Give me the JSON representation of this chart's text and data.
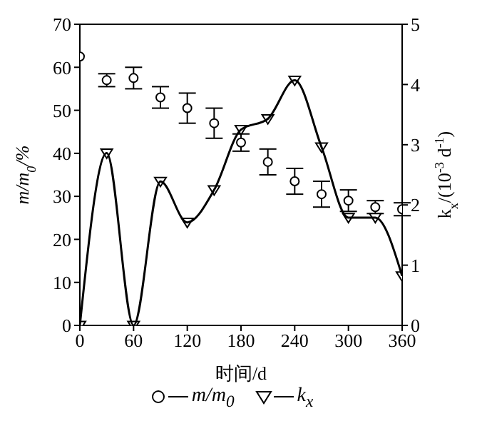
{
  "chart_data": {
    "type": "scatter",
    "xlabel": "时间/d",
    "ylabel": "m/m$_{0}$/%",
    "y2label": "k$_{x}$/(10$^{-3}$ d$^{-1}$)",
    "x": [
      0,
      30,
      60,
      90,
      120,
      150,
      180,
      210,
      240,
      270,
      300,
      330,
      360
    ],
    "series": [
      {
        "name": "m/m$_{0}$",
        "marker": "circle",
        "color": "#000000",
        "values": [
          62.5,
          57,
          57.5,
          53,
          50.5,
          47,
          42.5,
          38,
          33.5,
          30.5,
          29,
          27.5,
          27
        ],
        "errors": [
          null,
          1.5,
          2.5,
          2.5,
          3.5,
          3.5,
          2,
          3,
          3,
          3,
          2.5,
          1.5,
          1.5
        ]
      },
      {
        "name": "k$_{x}$",
        "type": "line",
        "axis": "y2",
        "marker": "triangle",
        "line_style": "solid",
        "color": "#000000",
        "values": [
          0,
          2.86,
          0,
          2.39,
          1.71,
          2.25,
          3.25,
          3.43,
          4.07,
          2.96,
          1.79,
          1.79,
          0.82
        ]
      }
    ],
    "xlim": [
      0,
      360
    ],
    "xticks": [
      0,
      60,
      120,
      180,
      240,
      300,
      360
    ],
    "ylim": [
      0,
      70
    ],
    "yticks": [
      0,
      10,
      20,
      30,
      40,
      50,
      60,
      70
    ],
    "y2lim": [
      0,
      5
    ],
    "y2ticks": [
      0,
      1,
      2,
      3,
      4,
      5
    ],
    "grid": false,
    "legend": "bottom"
  }
}
